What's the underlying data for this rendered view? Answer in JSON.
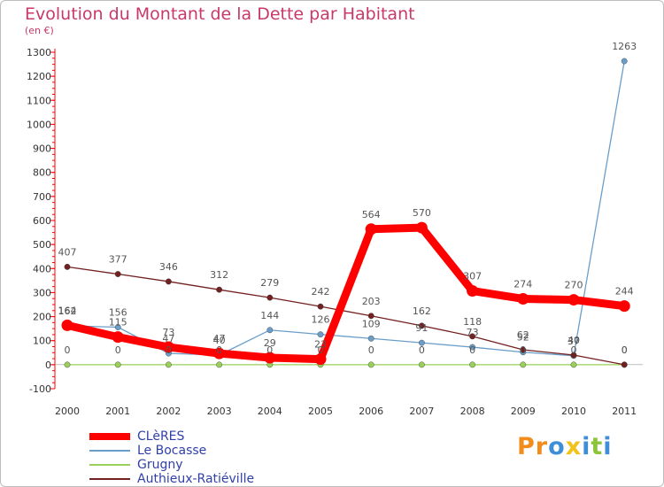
{
  "header": {
    "title": "Evolution du Montant de la Dette par Habitant",
    "subtitle": "(en €)"
  },
  "logo": {
    "letters": [
      "P",
      "r",
      "o",
      "x",
      "i",
      "t",
      "i"
    ],
    "colors": [
      "#f28c1a",
      "#f28c1a",
      "#3f8fd8",
      "#f2c21a",
      "#3f8fd8",
      "#8cc43a",
      "#3f8fd8"
    ]
  },
  "chart_data": {
    "type": "line",
    "title": "Evolution du Montant de la Dette par Habitant",
    "ylabel": "(en €)",
    "xlabel": "",
    "ylim": [
      -100,
      1300
    ],
    "yticks": [
      -100,
      0,
      100,
      200,
      300,
      400,
      500,
      600,
      700,
      800,
      900,
      1000,
      1100,
      1200,
      1300
    ],
    "grid": false,
    "legend_position": "bottom-left",
    "categories": [
      "2000",
      "2001",
      "2002",
      "2003",
      "2004",
      "2005",
      "2006",
      "2007",
      "2008",
      "2009",
      "2010",
      "2011"
    ],
    "series": [
      {
        "name": "CLèRES",
        "color": "#ff0000",
        "values": [
          164,
          115,
          73,
          47,
          29,
          23,
          564,
          570,
          307,
          274,
          270,
          244
        ]
      },
      {
        "name": "Le Bocasse",
        "color": "#6a9ec9",
        "values": [
          162,
          156,
          47,
          40,
          144,
          126,
          109,
          91,
          73,
          52,
          37,
          1263
        ]
      },
      {
        "name": "Grugny",
        "color": "#99d05a",
        "values": [
          0,
          0,
          0,
          0,
          0,
          0,
          0,
          0,
          0,
          0,
          0,
          0
        ]
      },
      {
        "name": "Authieux-Ratiéville",
        "color": "#722020",
        "values": [
          407,
          377,
          346,
          312,
          279,
          242,
          203,
          162,
          118,
          62,
          40,
          0
        ]
      }
    ]
  }
}
